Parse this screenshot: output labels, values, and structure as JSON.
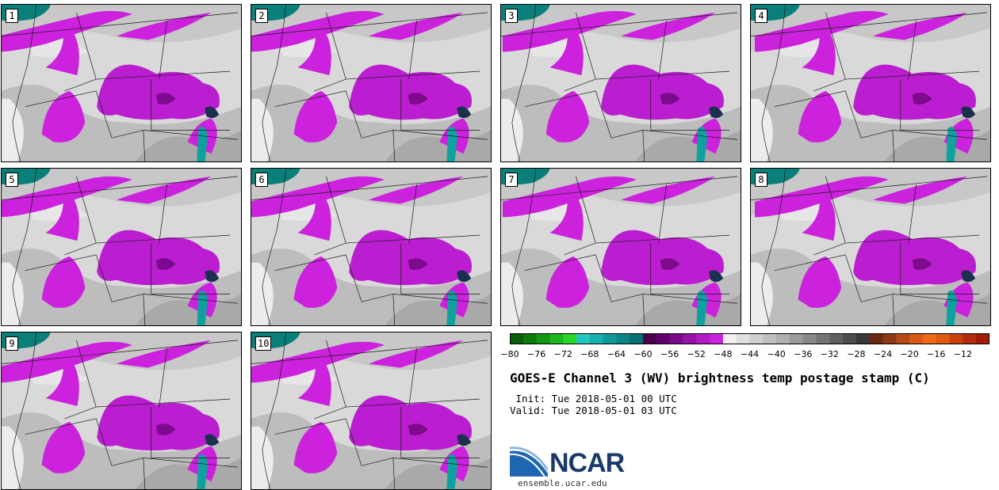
{
  "panels": [
    "1",
    "2",
    "3",
    "4",
    "5",
    "6",
    "7",
    "8",
    "9",
    "10"
  ],
  "colorbar": {
    "colors": [
      "#0b5d0b",
      "#0e7a0e",
      "#139713",
      "#1bb61b",
      "#2bd42b",
      "#22c8c0",
      "#18b0b0",
      "#109a9a",
      "#0a8585",
      "#066f6f",
      "#4a004a",
      "#62006b",
      "#7a0a8a",
      "#9412a8",
      "#b01bc6",
      "#cc22e0",
      "#f0f0f0",
      "#e0e0e0",
      "#cfcfcf",
      "#bfbfbf",
      "#afafaf",
      "#9b9b9b",
      "#888888",
      "#747474",
      "#606060",
      "#4c4c4c",
      "#383838",
      "#6a2a10",
      "#8c3a14",
      "#b44a18",
      "#d85a14",
      "#ef6a10",
      "#e05a10",
      "#c84010",
      "#b02c0c",
      "#a01c08"
    ],
    "tick_labels": [
      "−80",
      "−76",
      "−72",
      "−68",
      "−64",
      "−60",
      "−56",
      "−52",
      "−48",
      "−44",
      "−40",
      "−36",
      "−32",
      "−28",
      "−24",
      "−20",
      "−16",
      "−12"
    ]
  },
  "title": "GOES-E Channel 3 (WV) brightness temp postage stamp (C)",
  "init": " Init: Tue 2018-05-01 00 UTC",
  "valid": "Valid: Tue 2018-05-01 03 UTC",
  "logo": {
    "text": "NCAR",
    "url": "ensemble.ucar.edu"
  }
}
